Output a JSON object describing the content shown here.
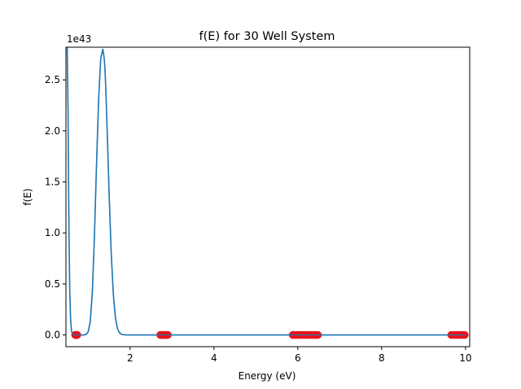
{
  "chart_data": {
    "type": "line",
    "title": "f(E) for 30 Well System",
    "xlabel": "Energy (eV)",
    "ylabel": "f(E)",
    "y_scale_label": "1e43",
    "xlim": [
      0.47,
      10.1
    ],
    "ylim": [
      -0.115,
      2.82
    ],
    "x_ticks": [
      2,
      4,
      6,
      8,
      10
    ],
    "x_tick_labels": [
      "2",
      "4",
      "6",
      "8",
      "10"
    ],
    "y_ticks": [
      0.0,
      0.5,
      1.0,
      1.5,
      2.0,
      2.5
    ],
    "y_tick_labels": [
      "0.0",
      "0.5",
      "1.0",
      "1.5",
      "2.0",
      "2.5"
    ],
    "grid": false,
    "legend": "none",
    "series": [
      {
        "kind": "line",
        "color": "#1f77b4",
        "x": [
          0.5,
          0.52,
          0.54,
          0.56,
          0.58,
          0.6,
          0.62,
          0.65,
          0.7,
          0.75,
          0.8,
          0.85,
          0.9,
          0.95,
          1.0,
          1.05,
          1.1,
          1.15,
          1.2,
          1.25,
          1.3,
          1.35,
          1.38,
          1.4,
          1.42,
          1.45,
          1.5,
          1.55,
          1.6,
          1.65,
          1.7,
          1.75,
          1.8,
          1.9,
          2.0,
          3.0,
          4.0,
          5.0,
          6.0,
          7.0,
          8.0,
          9.0,
          10.0
        ],
        "y": [
          2.82,
          2.2,
          1.1,
          0.45,
          0.16,
          0.05,
          0.01,
          0.0,
          0.0,
          0.0,
          0.0,
          0.0,
          0.0,
          0.005,
          0.03,
          0.13,
          0.42,
          0.97,
          1.68,
          2.31,
          2.71,
          2.8,
          2.72,
          2.62,
          2.42,
          2.05,
          1.38,
          0.8,
          0.4,
          0.17,
          0.06,
          0.02,
          0.005,
          0.0,
          0.0,
          0.0,
          0.0,
          0.0,
          0.0,
          0.0,
          0.0,
          0.0,
          0.0
        ]
      },
      {
        "kind": "scatter",
        "color": "#e8131a",
        "x": [
          0.69,
          0.7,
          0.71,
          0.72,
          0.73,
          0.74,
          2.72,
          2.74,
          2.76,
          2.78,
          2.8,
          2.82,
          2.84,
          2.86,
          2.88,
          2.9,
          5.88,
          5.92,
          5.96,
          6.0,
          6.04,
          6.08,
          6.12,
          6.16,
          6.2,
          6.24,
          6.28,
          6.32,
          6.36,
          6.4,
          6.44,
          6.48,
          9.66,
          9.7,
          9.74,
          9.78,
          9.82,
          9.86,
          9.9,
          9.94,
          9.98
        ],
        "y": [
          0,
          0,
          0,
          0,
          0,
          0,
          0,
          0,
          0,
          0,
          0,
          0,
          0,
          0,
          0,
          0,
          0,
          0,
          0,
          0,
          0,
          0,
          0,
          0,
          0,
          0,
          0,
          0,
          0,
          0,
          0,
          0,
          0,
          0,
          0,
          0,
          0,
          0,
          0,
          0,
          0
        ]
      }
    ]
  }
}
